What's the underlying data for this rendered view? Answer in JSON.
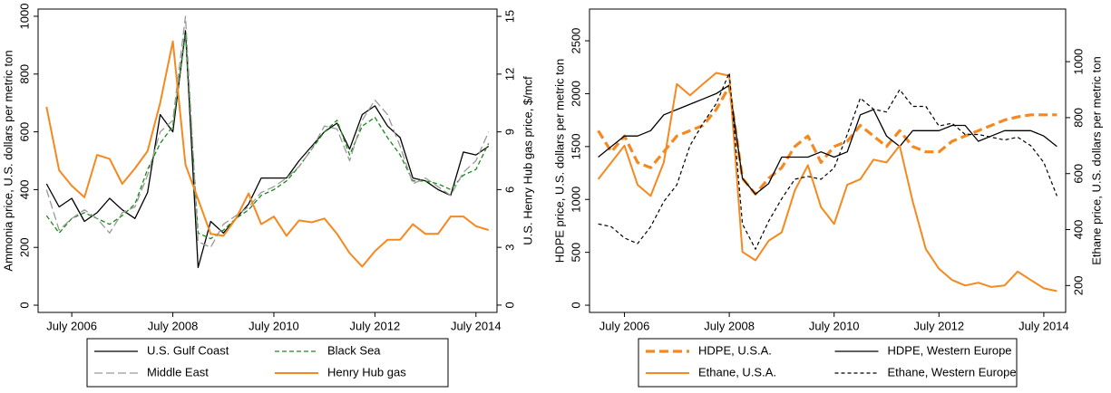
{
  "chart_data": [
    {
      "type": "line",
      "ylabel": "Ammonia price, U.S. dollars per metric ton",
      "y2label": "U.S. Henry Hub gas price, $/mcf",
      "x": [
        "2006-01",
        "2006-04",
        "2006-07",
        "2006-10",
        "2007-01",
        "2007-04",
        "2007-07",
        "2007-10",
        "2008-01",
        "2008-04",
        "2008-07",
        "2008-10",
        "2009-01",
        "2009-04",
        "2009-07",
        "2009-10",
        "2010-01",
        "2010-04",
        "2010-07",
        "2010-10",
        "2011-01",
        "2011-04",
        "2011-07",
        "2011-10",
        "2012-01",
        "2012-04",
        "2012-07",
        "2012-10",
        "2013-01",
        "2013-04",
        "2013-07",
        "2013-10",
        "2014-01",
        "2014-04",
        "2014-07",
        "2014-10"
      ],
      "xlim": [
        "2005-11",
        "2014-12"
      ],
      "xticks": [
        {
          "value": "2006-07",
          "label": "July 2006"
        },
        {
          "value": "2008-07",
          "label": "July 2008"
        },
        {
          "value": "2010-07",
          "label": "July 2010"
        },
        {
          "value": "2012-07",
          "label": "July 2012"
        },
        {
          "value": "2014-07",
          "label": "July 2014"
        }
      ],
      "ylim": [
        -25,
        1025
      ],
      "yticks": [
        0,
        200,
        400,
        600,
        800,
        1000
      ],
      "y2lim": [
        -0.38,
        15.38
      ],
      "y2ticks": [
        0,
        3,
        6,
        9,
        12,
        15
      ],
      "series": [
        {
          "name": "U.S. Gulf Coast",
          "color": "#000000",
          "dash": "none",
          "width": 1.3,
          "values": [
            420,
            340,
            370,
            290,
            320,
            370,
            330,
            300,
            390,
            660,
            600,
            950,
            130,
            290,
            250,
            300,
            350,
            440,
            440,
            440,
            500,
            550,
            600,
            630,
            540,
            660,
            690,
            620,
            580,
            440,
            430,
            400,
            380,
            530,
            520,
            550
          ]
        },
        {
          "name": "Black Sea",
          "color": "#1a8a1a",
          "dash": "5,3",
          "width": 1.3,
          "values": [
            310,
            250,
            300,
            320,
            300,
            280,
            310,
            350,
            470,
            560,
            620,
            940,
            250,
            230,
            260,
            300,
            330,
            380,
            400,
            430,
            480,
            540,
            600,
            640,
            520,
            620,
            650,
            580,
            520,
            430,
            430,
            420,
            400,
            450,
            470,
            560
          ]
        },
        {
          "name": "Middle East",
          "color": "#999999",
          "dash": "9,4",
          "width": 1.3,
          "values": [
            400,
            260,
            300,
            330,
            300,
            250,
            320,
            340,
            450,
            600,
            640,
            1000,
            220,
            200,
            280,
            310,
            340,
            390,
            410,
            440,
            480,
            540,
            620,
            610,
            500,
            640,
            710,
            660,
            550,
            420,
            440,
            410,
            380,
            460,
            500,
            600
          ]
        },
        {
          "name": "Henry Hub gas",
          "color": "#f5891f",
          "dash": "none",
          "width": 2,
          "axis": "y2",
          "values": [
            10.3,
            7.0,
            6.2,
            5.6,
            7.8,
            7.6,
            6.3,
            7.1,
            8.0,
            10.5,
            13.7,
            7.3,
            5.5,
            3.7,
            3.6,
            4.5,
            5.8,
            4.2,
            4.6,
            3.6,
            4.4,
            4.3,
            4.5,
            3.7,
            2.7,
            2.0,
            2.8,
            3.4,
            3.4,
            4.2,
            3.7,
            3.7,
            4.6,
            4.6,
            4.1,
            3.9
          ]
        }
      ]
    },
    {
      "type": "line",
      "ylabel": "HDPE price, U.S. dollars per metric ton",
      "y2label": "Ethane price, U.S. dollars per metric ton",
      "x": [
        "2006-01",
        "2006-04",
        "2006-07",
        "2006-10",
        "2007-01",
        "2007-04",
        "2007-07",
        "2007-10",
        "2008-01",
        "2008-04",
        "2008-07",
        "2008-10",
        "2009-01",
        "2009-04",
        "2009-07",
        "2009-10",
        "2010-01",
        "2010-04",
        "2010-07",
        "2010-10",
        "2011-01",
        "2011-04",
        "2011-07",
        "2011-10",
        "2012-01",
        "2012-04",
        "2012-07",
        "2012-10",
        "2013-01",
        "2013-04",
        "2013-07",
        "2013-10",
        "2014-01",
        "2014-04",
        "2014-07",
        "2014-10"
      ],
      "xlim": [
        "2005-11",
        "2014-12"
      ],
      "xticks": [
        {
          "value": "2006-07",
          "label": "July 2006"
        },
        {
          "value": "2008-07",
          "label": "July 2008"
        },
        {
          "value": "2010-07",
          "label": "July 2010"
        },
        {
          "value": "2012-07",
          "label": "July 2012"
        },
        {
          "value": "2014-07",
          "label": "July 2014"
        }
      ],
      "ylim": [
        -68,
        2800
      ],
      "yticks": [
        0,
        500,
        1000,
        1500,
        2000,
        2500
      ],
      "y2lim": [
        104,
        1188
      ],
      "y2ticks": [
        200,
        400,
        600,
        800,
        1000
      ],
      "series": [
        {
          "name": "HDPE, U.S.A.",
          "color": "#f5891f",
          "dash": "10,5",
          "width": 3.2,
          "values": [
            1650,
            1450,
            1600,
            1350,
            1300,
            1450,
            1600,
            1650,
            1700,
            1850,
            2070,
            1200,
            1050,
            1200,
            1300,
            1500,
            1600,
            1350,
            1500,
            1550,
            1700,
            1600,
            1500,
            1650,
            1500,
            1450,
            1450,
            1550,
            1600,
            1650,
            1700,
            1750,
            1780,
            1800,
            1800,
            1800
          ]
        },
        {
          "name": "HDPE, Western Europe",
          "color": "#000000",
          "dash": "none",
          "width": 1.3,
          "values": [
            1400,
            1500,
            1600,
            1600,
            1650,
            1800,
            1850,
            1900,
            1950,
            2000,
            2080,
            1200,
            1050,
            1150,
            1400,
            1400,
            1400,
            1450,
            1400,
            1450,
            1800,
            1850,
            1600,
            1500,
            1650,
            1650,
            1650,
            1700,
            1700,
            1550,
            1600,
            1650,
            1650,
            1650,
            1600,
            1500
          ]
        },
        {
          "name": "Ethane, U.S.A.",
          "color": "#f5891f",
          "dash": "none",
          "width": 2,
          "axis": "y2",
          "values": [
            580,
            640,
            700,
            560,
            520,
            640,
            920,
            880,
            920,
            960,
            950,
            320,
            290,
            360,
            390,
            540,
            630,
            480,
            420,
            560,
            580,
            650,
            640,
            700,
            500,
            330,
            260,
            220,
            200,
            210,
            195,
            200,
            250,
            220,
            190,
            180
          ]
        },
        {
          "name": "Ethane, Western Europe",
          "color": "#000000",
          "dash": "4,3",
          "width": 1.2,
          "axis": "y2",
          "values": [
            420,
            410,
            370,
            350,
            410,
            500,
            560,
            700,
            780,
            850,
            960,
            420,
            330,
            430,
            510,
            580,
            590,
            580,
            620,
            740,
            870,
            830,
            820,
            900,
            840,
            840,
            770,
            780,
            740,
            740,
            730,
            720,
            730,
            700,
            640,
            520
          ]
        }
      ]
    }
  ]
}
